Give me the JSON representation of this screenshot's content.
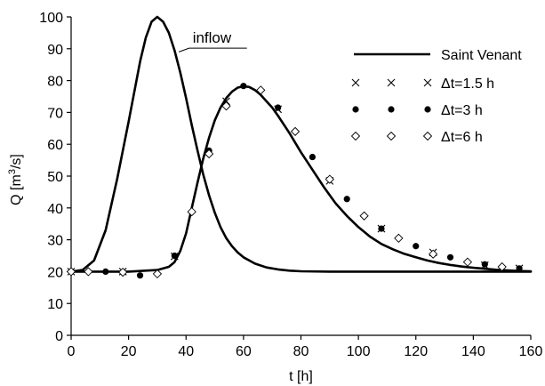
{
  "chart_data": {
    "type": "line",
    "title": "",
    "xlabel": "t [h]",
    "ylabel_parts": {
      "base": "Q [m",
      "sup": "3",
      "rest": "/s]"
    },
    "xlim": [
      0,
      160
    ],
    "ylim": [
      0,
      100
    ],
    "xticks": [
      0,
      20,
      40,
      60,
      80,
      100,
      120,
      140,
      160
    ],
    "yticks": [
      0,
      10,
      20,
      30,
      40,
      50,
      60,
      70,
      80,
      90,
      100
    ],
    "grid": false,
    "legend_position": "top-right",
    "annotations": [
      {
        "text": "inflow",
        "x": 42,
        "y": 95.5,
        "points_to_x": 37.5,
        "points_to_y": 89
      }
    ],
    "series": [
      {
        "name": "",
        "label": "inflow",
        "style": "line",
        "x": [
          0,
          4,
          8,
          12,
          16,
          20,
          24,
          26,
          28,
          30,
          32,
          34,
          36,
          38,
          40,
          42,
          44,
          46,
          48,
          50,
          52,
          54,
          56,
          58,
          60,
          64,
          68,
          72,
          76,
          80,
          90,
          100,
          120,
          140,
          160
        ],
        "y": [
          20,
          20.5,
          23.5,
          33,
          49,
          67,
          86,
          93.5,
          98.5,
          100,
          98.5,
          95,
          89.5,
          82.5,
          74.5,
          66,
          58,
          50.5,
          44,
          38.5,
          34,
          30.5,
          28,
          26,
          24.5,
          22.5,
          21.3,
          20.7,
          20.3,
          20.1,
          20,
          20,
          20,
          20,
          20
        ]
      },
      {
        "name": "Saint Venant",
        "style": "line",
        "x": [
          0,
          10,
          20,
          30,
          34,
          36,
          38,
          40,
          42,
          44,
          46,
          48,
          50,
          52,
          54,
          56,
          58,
          60,
          62,
          64,
          66,
          68,
          70,
          72,
          76,
          80,
          84,
          88,
          92,
          96,
          100,
          104,
          108,
          112,
          116,
          120,
          124,
          128,
          132,
          136,
          140,
          144,
          148,
          152,
          156,
          160
        ],
        "y": [
          20,
          20,
          20,
          20.5,
          21.5,
          23,
          26.5,
          32,
          40,
          48,
          55.5,
          62,
          67.5,
          71.5,
          74.5,
          76.5,
          77.8,
          78.2,
          78,
          77,
          75.5,
          73.5,
          71.5,
          69,
          63.5,
          57.5,
          52,
          46.5,
          41.5,
          37.5,
          34,
          31,
          28.7,
          27,
          25.6,
          24.5,
          23.5,
          22.7,
          22.1,
          21.6,
          21.2,
          20.9,
          20.6,
          20.4,
          20.2,
          20.1
        ]
      },
      {
        "name": "Δt=1.5 h",
        "style": "marker-x",
        "x": [
          0,
          18,
          36,
          54,
          72,
          90,
          108,
          126,
          144,
          156
        ],
        "y": [
          20,
          20,
          24.8,
          73.5,
          71,
          48.5,
          33.5,
          26,
          22,
          21
        ]
      },
      {
        "name": "Δt=3 h",
        "style": "marker-dot",
        "x": [
          0,
          12,
          24,
          36,
          48,
          60,
          72,
          84,
          96,
          108,
          120,
          132,
          144,
          156
        ],
        "y": [
          20,
          20,
          18.8,
          25,
          58,
          78.3,
          71.5,
          56,
          42.8,
          33.5,
          28,
          24.5,
          22.3,
          21
        ]
      },
      {
        "name": "Δt=6 h",
        "style": "marker-diamond",
        "x": [
          0,
          6,
          18,
          30,
          42,
          48,
          54,
          66,
          78,
          90,
          102,
          114,
          126,
          138,
          150
        ],
        "y": [
          20,
          20,
          19.8,
          19.3,
          38.8,
          57,
          72,
          77,
          64,
          49,
          37.5,
          30.5,
          25.5,
          23,
          21.5
        ]
      }
    ],
    "legend": [
      {
        "label": "Saint Venant",
        "style": "line"
      },
      {
        "label": "Δt=1.5 h",
        "style": "marker-x"
      },
      {
        "label": "Δt=3 h",
        "style": "marker-dot"
      },
      {
        "label": "Δt=6 h",
        "style": "marker-diamond"
      }
    ]
  }
}
